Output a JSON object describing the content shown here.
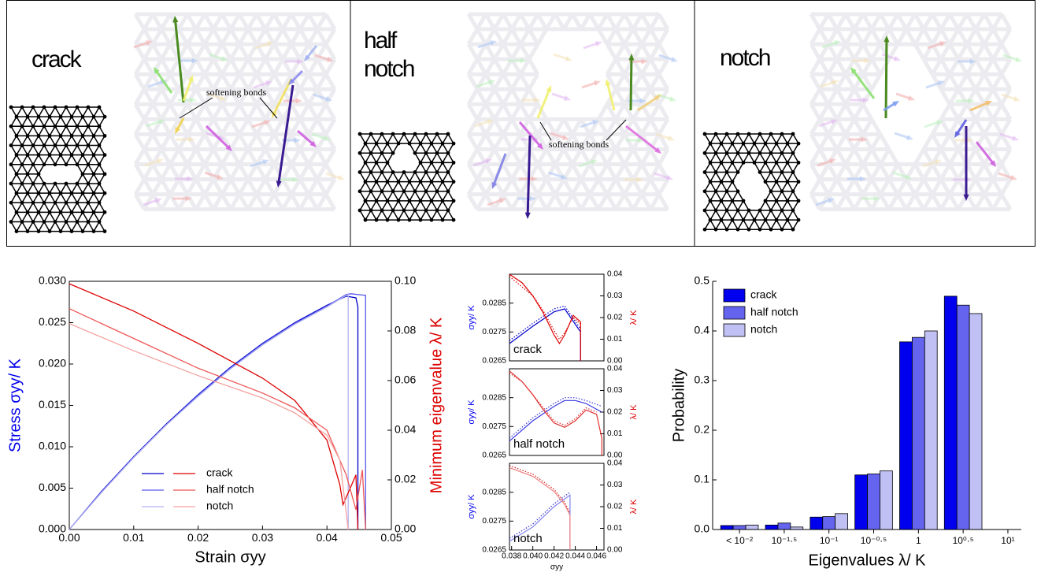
{
  "panels": [
    {
      "label": "crack",
      "annotation": "softening bonds"
    },
    {
      "label": "half notch",
      "annotation": "softening bonds"
    },
    {
      "label": "notch"
    }
  ],
  "chart_data": [
    {
      "type": "line",
      "xlabel": "Strain σyy",
      "ylabel": "Stress σyy/ K",
      "y2label": "Minimum eigenvalue λ/ K",
      "xlim": [
        0,
        0.05
      ],
      "xticks": [
        {
          "value": 0,
          "label": "0.00"
        },
        {
          "value": 0.01,
          "label": "0.01"
        },
        {
          "value": 0.02,
          "label": "0.02"
        },
        {
          "value": 0.03,
          "label": "0.03"
        },
        {
          "value": 0.04,
          "label": "0.04"
        },
        {
          "value": 0.05,
          "label": "0.05"
        }
      ],
      "ylim": [
        0,
        0.03
      ],
      "yticks": [
        {
          "value": 0,
          "label": "0.000"
        },
        {
          "value": 0.005,
          "label": "0.005"
        },
        {
          "value": 0.01,
          "label": "0.010"
        },
        {
          "value": 0.015,
          "label": "0.015"
        },
        {
          "value": 0.02,
          "label": "0.020"
        },
        {
          "value": 0.025,
          "label": "0.025"
        },
        {
          "value": 0.03,
          "label": "0.030"
        }
      ],
      "y2lim": [
        0,
        0.1
      ],
      "y2ticks": [
        {
          "value": 0,
          "label": "0.00"
        },
        {
          "value": 0.02,
          "label": "0.02"
        },
        {
          "value": 0.04,
          "label": "0.04"
        },
        {
          "value": 0.06,
          "label": "0.06"
        },
        {
          "value": 0.08,
          "label": "0.08"
        },
        {
          "value": 0.1,
          "label": "0.10"
        }
      ],
      "series": [
        {
          "name": "crack",
          "color": "#0000cc",
          "x": [
            0,
            0.005,
            0.01,
            0.015,
            0.02,
            0.025,
            0.03,
            0.035,
            0.04,
            0.043,
            0.0445,
            0.0448,
            0.0448
          ],
          "values": [
            0,
            0.0046,
            0.0088,
            0.0127,
            0.0163,
            0.0196,
            0.0225,
            0.025,
            0.0271,
            0.0282,
            0.028,
            0.0269,
            0
          ]
        },
        {
          "name": "half notch",
          "color": "#5a5aee",
          "x": [
            0,
            0.005,
            0.01,
            0.015,
            0.02,
            0.025,
            0.03,
            0.035,
            0.04,
            0.043,
            0.0437,
            0.046,
            0.046
          ],
          "values": [
            0,
            0.0045,
            0.0087,
            0.0126,
            0.0162,
            0.0195,
            0.0224,
            0.0249,
            0.027,
            0.0284,
            0.0285,
            0.0283,
            0
          ]
        },
        {
          "name": "notch",
          "color": "#b0b0f0",
          "x": [
            0,
            0.005,
            0.01,
            0.015,
            0.02,
            0.025,
            0.03,
            0.035,
            0.04,
            0.043,
            0.0433,
            0.0433
          ],
          "values": [
            0,
            0.0045,
            0.0087,
            0.0126,
            0.0161,
            0.0194,
            0.0223,
            0.0248,
            0.0269,
            0.0283,
            0.0284,
            0
          ]
        },
        {
          "color": "#dd0000",
          "axis": "y2",
          "x": [
            0,
            0.01,
            0.02,
            0.03,
            0.035,
            0.04,
            0.042,
            0.0425,
            0.0435,
            0.0445,
            0.0448
          ],
          "values": [
            0.099,
            0.088,
            0.075,
            0.061,
            0.052,
            0.036,
            0.018,
            0.01,
            0.016,
            0.022,
            0
          ]
        },
        {
          "color": "#ee5555",
          "axis": "y2",
          "x": [
            0,
            0.01,
            0.02,
            0.03,
            0.035,
            0.04,
            0.043,
            0.0445,
            0.0455,
            0.046
          ],
          "values": [
            0.089,
            0.077,
            0.065,
            0.055,
            0.049,
            0.04,
            0.022,
            0.008,
            0.024,
            0
          ]
        },
        {
          "color": "#f5a0a0",
          "axis": "y2",
          "x": [
            0,
            0.01,
            0.02,
            0.03,
            0.035,
            0.04,
            0.042,
            0.0433
          ],
          "values": [
            0.083,
            0.072,
            0.062,
            0.053,
            0.047,
            0.038,
            0.028,
            0
          ]
        }
      ]
    },
    {
      "type": "line",
      "label": "crack",
      "ylabel": "σyy/ K",
      "y2label": "λ/ K",
      "xlim": [
        0.0378,
        0.0467
      ],
      "ylim": [
        0.0265,
        0.0295
      ],
      "yticks": [
        0.0265,
        0.0275,
        0.0285
      ],
      "y2lim": [
        0,
        0.04
      ],
      "y2ticks": [
        {
          "value": 0,
          "label": "0.00"
        },
        {
          "value": 0.01,
          "label": "0.01"
        },
        {
          "value": 0.02,
          "label": "0.02"
        },
        {
          "value": 0.03,
          "label": "0.03"
        },
        {
          "value": 0.04,
          "label": "0.04"
        }
      ],
      "series": [
        {
          "color": "#0000cc",
          "x": [
            0.0378,
            0.04,
            0.042,
            0.043,
            0.0445,
            0.0445
          ],
          "values": [
            0.0271,
            0.0277,
            0.0282,
            0.0283,
            0.0275,
            0.0265
          ]
        },
        {
          "color": "#0000cc",
          "style": "dotted",
          "x": [
            0.0378,
            0.04,
            0.042,
            0.043,
            0.0445
          ],
          "values": [
            0.0272,
            0.0278,
            0.0283,
            0.0284,
            0.0276
          ]
        },
        {
          "color": "#dd0000",
          "axis": "y2",
          "x": [
            0.0378,
            0.039,
            0.04,
            0.041,
            0.042,
            0.0425,
            0.043,
            0.0438,
            0.0445,
            0.0445
          ],
          "values": [
            0.04,
            0.036,
            0.03,
            0.022,
            0.012,
            0.008,
            0.012,
            0.021,
            0.018,
            0
          ]
        },
        {
          "color": "#dd0000",
          "axis": "y2",
          "style": "dotted",
          "x": [
            0.0378,
            0.04,
            0.041,
            0.042,
            0.0425,
            0.043,
            0.0438,
            0.0445
          ],
          "values": [
            0.039,
            0.03,
            0.023,
            0.014,
            0.01,
            0.013,
            0.02,
            0.017
          ]
        }
      ]
    },
    {
      "type": "line",
      "label": "half notch",
      "ylabel": "σyy/ K",
      "y2label": "λ/ K",
      "xlim": [
        0.0378,
        0.0467
      ],
      "ylim": [
        0.0265,
        0.0295
      ],
      "yticks": [
        0.0265,
        0.0275,
        0.0285
      ],
      "y2lim": [
        0,
        0.04
      ],
      "y2ticks": [
        {
          "value": 0,
          "label": "0.00"
        },
        {
          "value": 0.01,
          "label": "0.01"
        },
        {
          "value": 0.02,
          "label": "0.02"
        },
        {
          "value": 0.03,
          "label": "0.03"
        },
        {
          "value": 0.04,
          "label": "0.04"
        }
      ],
      "series": [
        {
          "color": "#3a3ae0",
          "x": [
            0.0378,
            0.04,
            0.042,
            0.043,
            0.044,
            0.045,
            0.0465
          ],
          "values": [
            0.027,
            0.0277,
            0.0282,
            0.0284,
            0.0284,
            0.0283,
            0.028
          ]
        },
        {
          "color": "#3a3ae0",
          "style": "dotted",
          "x": [
            0.0378,
            0.04,
            0.042,
            0.043,
            0.044,
            0.045,
            0.0465
          ],
          "values": [
            0.0271,
            0.0278,
            0.0283,
            0.0285,
            0.0285,
            0.0284,
            0.0282
          ]
        },
        {
          "color": "#e03030",
          "axis": "y2",
          "x": [
            0.0378,
            0.039,
            0.04,
            0.041,
            0.042,
            0.043,
            0.044,
            0.045,
            0.046,
            0.0465,
            0.0465
          ],
          "values": [
            0.039,
            0.034,
            0.028,
            0.021,
            0.015,
            0.013,
            0.016,
            0.021,
            0.019,
            0.008,
            0
          ]
        },
        {
          "color": "#e03030",
          "axis": "y2",
          "style": "dotted",
          "x": [
            0.0378,
            0.039,
            0.04,
            0.041,
            0.042,
            0.043,
            0.044,
            0.045,
            0.046
          ],
          "values": [
            0.038,
            0.034,
            0.028,
            0.022,
            0.016,
            0.014,
            0.017,
            0.022,
            0.02
          ]
        }
      ]
    },
    {
      "type": "line",
      "label": "notch",
      "ylabel": "σyy/ K",
      "y2label": "λ/ K",
      "xlabel": "σyy",
      "xlim": [
        0.0378,
        0.0467
      ],
      "xticks": [
        0.038,
        {
          "value": 0.04,
          "label": "0.040"
        },
        0.042,
        0.044,
        0.046
      ],
      "ylim": [
        0.0265,
        0.0295
      ],
      "yticks": [
        0.0265,
        0.0275,
        0.0285
      ],
      "y2lim": [
        0,
        0.04
      ],
      "y2ticks": [
        {
          "value": 0,
          "label": "0.00"
        },
        {
          "value": 0.01,
          "label": "0.01"
        },
        {
          "value": 0.02,
          "label": "0.02"
        },
        {
          "value": 0.03,
          "label": "0.03"
        },
        {
          "value": 0.04,
          "label": "0.04"
        }
      ],
      "series": [
        {
          "color": "#8080f0",
          "x": [
            0.0378,
            0.04,
            0.042,
            0.0435,
            0.0435
          ],
          "values": [
            0.0268,
            0.0273,
            0.028,
            0.0284,
            0.0265
          ]
        },
        {
          "color": "#3030d0",
          "style": "dotted",
          "x": [
            0.0378,
            0.04,
            0.042,
            0.0435
          ],
          "values": [
            0.0269,
            0.0274,
            0.0281,
            0.0285
          ]
        },
        {
          "color": "#f08080",
          "axis": "y2",
          "x": [
            0.0378,
            0.04,
            0.042,
            0.043,
            0.0435,
            0.0435
          ],
          "values": [
            0.038,
            0.034,
            0.027,
            0.021,
            0.016,
            0
          ]
        },
        {
          "color": "#d02020",
          "axis": "y2",
          "style": "dotted",
          "x": [
            0.0378,
            0.04,
            0.042,
            0.043,
            0.0435
          ],
          "values": [
            0.039,
            0.035,
            0.028,
            0.022,
            0.017
          ]
        }
      ]
    },
    {
      "type": "grouped-bar",
      "xlabel": "Eigenvalues λ/ K",
      "ylabel": "Probability",
      "categories": [
        "< 10⁻²",
        "10⁻¹·⁵",
        "10⁻¹",
        "10⁻⁰·⁵",
        "1",
        "10⁰·⁵",
        "10¹"
      ],
      "ylim": [
        0,
        0.5
      ],
      "yticks": [
        {
          "value": 0,
          "label": "0.0"
        },
        0.1,
        0.2,
        0.3,
        0.4,
        0.5
      ],
      "series": [
        {
          "name": "crack",
          "color": "#0000ee",
          "values": [
            0.008,
            0.009,
            0.025,
            0.11,
            0.378,
            0.47,
            null
          ]
        },
        {
          "name": "half notch",
          "color": "#6464ee",
          "values": [
            0.008,
            0.013,
            0.026,
            0.112,
            0.387,
            0.452,
            null
          ]
        },
        {
          "name": "notch",
          "color": "#c0c0f4",
          "values": [
            0.009,
            0.005,
            0.032,
            0.118,
            0.4,
            0.435,
            null
          ]
        }
      ]
    }
  ]
}
